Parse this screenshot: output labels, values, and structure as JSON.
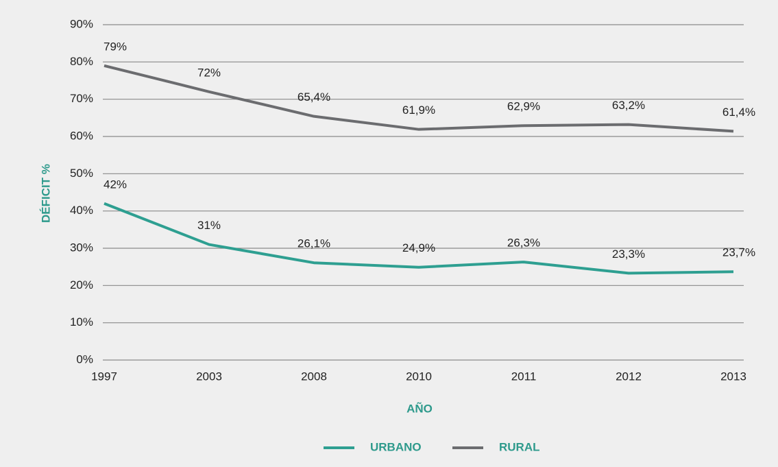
{
  "chart_data": {
    "type": "line",
    "categories": [
      "1997",
      "2003",
      "2008",
      "2010",
      "2011",
      "2012",
      "2013"
    ],
    "series": [
      {
        "name": "URBANO",
        "color": "#2e9f91",
        "values": [
          42,
          31,
          26.1,
          24.9,
          26.3,
          23.3,
          23.7
        ],
        "value_labels": [
          "42%",
          "31%",
          "26,1%",
          "24,9%",
          "26,3%",
          "23,3%",
          "23,7%"
        ]
      },
      {
        "name": "RURAL",
        "color": "#6b6c6f",
        "values": [
          79,
          72,
          65.4,
          61.9,
          62.9,
          63.2,
          61.4
        ],
        "value_labels": [
          "79%",
          "72%",
          "65,4%",
          "61,9%",
          "62,9%",
          "63,2%",
          "61,4%"
        ]
      }
    ],
    "ylabel": "DÉFICIT %",
    "xlabel": "AÑO",
    "ylim": [
      0,
      90
    ],
    "yticks": [
      {
        "value": 0,
        "label": "0%"
      },
      {
        "value": 10,
        "label": "10%"
      },
      {
        "value": 20,
        "label": "20%"
      },
      {
        "value": 30,
        "label": "30%"
      },
      {
        "value": 40,
        "label": "40%"
      },
      {
        "value": 50,
        "label": "50%"
      },
      {
        "value": 60,
        "label": "60%"
      },
      {
        "value": 70,
        "label": "70%"
      },
      {
        "value": 80,
        "label": "80%"
      },
      {
        "value": 90,
        "label": "90%"
      }
    ],
    "grid": true,
    "legend": "bottom"
  }
}
